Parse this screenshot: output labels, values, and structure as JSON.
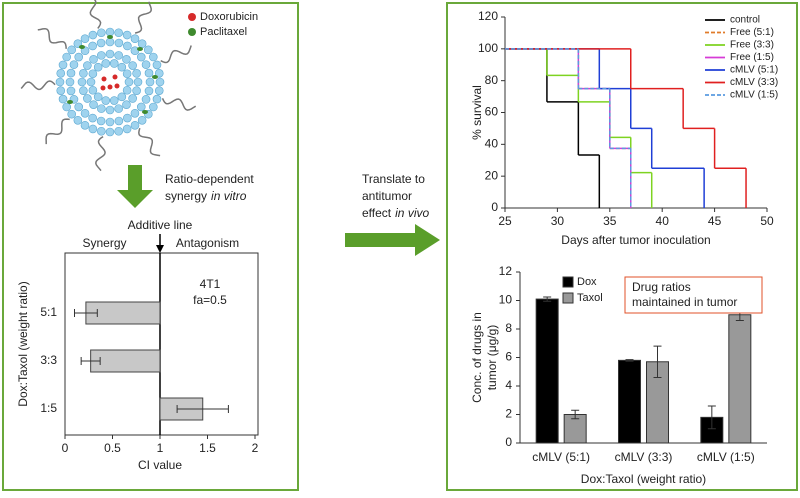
{
  "annotations": {
    "doxorubicin": "Doxorubicin",
    "paclitaxel": "Paclitaxel",
    "synergy_line1": "Ratio-dependent",
    "synergy_line2": "synergy",
    "synergy_italic": "in vitro",
    "translate_line1": "Translate to",
    "translate_line2": "antitumor",
    "translate_line3": "effect",
    "translate_italic": "in vivo"
  },
  "chart_data": [
    {
      "type": "hbar",
      "categories": [
        "5:1",
        "3:3",
        "1:5"
      ],
      "values": [
        0.22,
        0.27,
        1.45
      ],
      "errors": [
        0.12,
        0.1,
        0.27
      ],
      "color": "#c8c8c8",
      "xlim": [
        0,
        2
      ],
      "xticks": [
        0,
        0.5,
        1,
        1.5,
        2
      ],
      "xlabel": "CI value",
      "ylabel": "Dox:Taxol (weight ratio)",
      "reference_line": {
        "value": 1,
        "label": "Additive line"
      },
      "region_labels": [
        "Synergy",
        "Antagonism"
      ],
      "annotation": [
        "4T1",
        "fa=0.5"
      ]
    },
    {
      "type": "step",
      "xlim": [
        25,
        50
      ],
      "xticks": [
        25,
        30,
        35,
        40,
        45,
        50
      ],
      "ylim": [
        0,
        120
      ],
      "yticks": [
        0,
        20,
        40,
        60,
        80,
        100,
        120
      ],
      "xlabel": "Days after tumor inoculation",
      "ylabel": "% survival",
      "series": [
        {
          "name": "control",
          "color": "#000000",
          "dashed": false,
          "x": [
            25,
            29,
            32,
            34
          ],
          "values": [
            100,
            66.7,
            33.3,
            0
          ]
        },
        {
          "name": "Free (5:1)",
          "color": "#e07b2a",
          "dashed": true,
          "x": [
            25,
            32,
            35,
            37
          ],
          "values": [
            100,
            75,
            37.5,
            0
          ]
        },
        {
          "name": "Free (3:3)",
          "color": "#7ed321",
          "dashed": false,
          "x": [
            25,
            29,
            32,
            35,
            37,
            39
          ],
          "values": [
            100,
            83.3,
            66.7,
            44.4,
            22.2,
            0
          ]
        },
        {
          "name": "Free (1:5)",
          "color": "#d63cd6",
          "dashed": false,
          "x": [
            25,
            32,
            35,
            37
          ],
          "values": [
            100,
            75,
            37.5,
            0
          ]
        },
        {
          "name": "cMLV (5:1)",
          "color": "#1f3fd6",
          "dashed": false,
          "x": [
            25,
            34,
            37,
            39,
            44
          ],
          "values": [
            100,
            75,
            50,
            25,
            0
          ]
        },
        {
          "name": "cMLV (3:3)",
          "color": "#e02020",
          "dashed": false,
          "x": [
            25,
            37,
            42,
            45,
            48
          ],
          "values": [
            100,
            75,
            50,
            25,
            0
          ]
        },
        {
          "name": "cMLV (1:5)",
          "color": "#5a9be0",
          "dashed": true,
          "x": [
            25,
            32,
            35,
            37
          ],
          "values": [
            100,
            75,
            37.5,
            0
          ]
        }
      ]
    },
    {
      "type": "grouped_bar",
      "categories": [
        "cMLV (5:1)",
        "cMLV (3:3)",
        "cMLV (1:5)"
      ],
      "ylim": [
        0,
        12
      ],
      "yticks": [
        0,
        2,
        4,
        6,
        8,
        10,
        12
      ],
      "xlabel": "Dox:Taxol (weight ratio)",
      "ylabel": [
        "Conc. of drugs in",
        "tumor (μg/g)"
      ],
      "series": [
        {
          "name": "Dox",
          "color": "#000000",
          "values": [
            10.1,
            5.8,
            1.8
          ],
          "errors": [
            0.15,
            0.05,
            0.8
          ]
        },
        {
          "name": "Taxol",
          "color": "#999999",
          "values": [
            2.0,
            5.7,
            9.0
          ],
          "errors": [
            0.3,
            1.1,
            0.4
          ]
        }
      ],
      "annotation": [
        "Drug ratios",
        "maintained in tumor"
      ]
    }
  ]
}
